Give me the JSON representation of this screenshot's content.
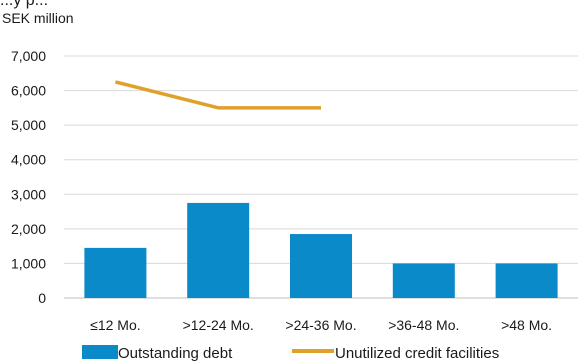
{
  "title_fragment": "...y p...",
  "unit_label": "SEK million",
  "chart_data": {
    "type": "bar",
    "categories": [
      "≤12 Mo.",
      ">12-24 Mo.",
      ">24-36 Mo.",
      ">36-48 Mo.",
      ">48 Mo."
    ],
    "series": [
      {
        "name": "Outstanding debt",
        "type": "bar",
        "color": "#0a8ac8",
        "values": [
          1450,
          2750,
          1850,
          1000,
          1000
        ]
      },
      {
        "name": "Unutilized credit facilities",
        "type": "line",
        "color": "#e0a12a",
        "values": [
          6250,
          5500,
          5500,
          null,
          null
        ]
      }
    ],
    "ylabel": "SEK million",
    "ylim": [
      0,
      7000
    ],
    "yticks": [
      "0",
      "1,000",
      "2,000",
      "3,000",
      "4,000",
      "5,000",
      "6,000",
      "7,000"
    ],
    "ytick_values": [
      0,
      1000,
      2000,
      3000,
      4000,
      5000,
      6000,
      7000
    ],
    "grid": true,
    "legend": "bottom"
  }
}
